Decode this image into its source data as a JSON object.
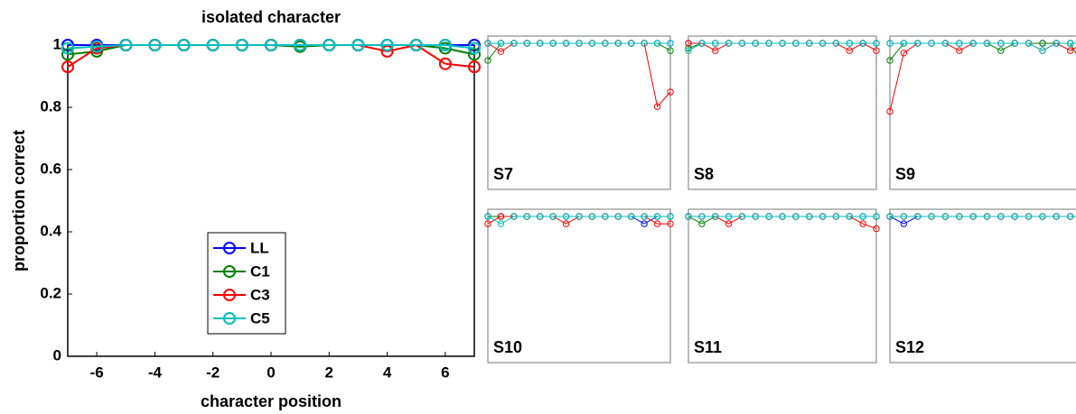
{
  "chart_data": [
    {
      "type": "line",
      "title": "isolated character",
      "x_label": "character position",
      "y_label": "proportion correct",
      "x": [
        -7,
        -6,
        -5,
        -4,
        -3,
        -2,
        -1,
        0,
        1,
        2,
        3,
        4,
        5,
        6,
        7
      ],
      "xlim": [
        -7,
        7
      ],
      "xticks": [
        -6,
        -4,
        -2,
        0,
        2,
        4,
        6
      ],
      "ylim": [
        0,
        1
      ],
      "yticks": [
        0,
        0.2,
        0.4,
        0.6,
        0.8,
        1
      ],
      "legend": "lower left",
      "series": [
        {
          "name": "LL",
          "color": "#0000ff",
          "values": [
            1,
            1,
            1,
            1,
            1,
            1,
            1,
            1,
            1,
            1,
            1,
            1,
            1,
            1,
            1
          ]
        },
        {
          "name": "C1",
          "color": "#008000",
          "values": [
            0.97,
            0.98,
            1,
            1,
            1,
            1,
            1,
            1,
            0.995,
            1,
            1,
            1,
            1,
            0.99,
            0.97
          ]
        },
        {
          "name": "C3",
          "color": "#ff0000",
          "values": [
            0.93,
            0.99,
            1,
            1,
            1,
            1,
            1,
            1,
            1,
            1,
            1,
            0.98,
            1,
            0.94,
            0.93
          ]
        },
        {
          "name": "C5",
          "color": "#00bfbf",
          "values": [
            0.99,
            0.995,
            1,
            1,
            1,
            1,
            1,
            1,
            1,
            1,
            1,
            1,
            1,
            1,
            0.99
          ]
        }
      ]
    },
    {
      "type": "line",
      "title": "S7",
      "x": [
        -7,
        -6,
        -5,
        -4,
        -3,
        -2,
        -1,
        0,
        1,
        2,
        3,
        4,
        5,
        6,
        7
      ],
      "xlim": [
        -7,
        7
      ],
      "ylim": [
        0.7,
        1
      ],
      "series": [
        {
          "color": "#0000ff",
          "values": [
            1,
            1,
            1,
            1,
            1,
            1,
            1,
            1,
            1,
            1,
            1,
            1,
            1,
            1,
            1
          ]
        },
        {
          "color": "#008000",
          "values": [
            0.965,
            1,
            1,
            1,
            1,
            1,
            1,
            1,
            1,
            1,
            1,
            1,
            1,
            1,
            0.985
          ]
        },
        {
          "color": "#ff0000",
          "values": [
            1,
            0.983,
            1,
            1,
            1,
            1,
            1,
            1,
            1,
            1,
            1,
            1,
            1,
            0.87,
            0.9
          ]
        },
        {
          "color": "#00bfbf",
          "values": [
            1,
            1,
            1,
            1,
            1,
            1,
            1,
            1,
            1,
            1,
            1,
            1,
            1,
            1,
            1
          ]
        }
      ]
    },
    {
      "type": "line",
      "title": "S8",
      "x": [
        -7,
        -6,
        -5,
        -4,
        -3,
        -2,
        -1,
        0,
        1,
        2,
        3,
        4,
        5,
        6,
        7
      ],
      "xlim": [
        -7,
        7
      ],
      "ylim": [
        0.7,
        1
      ],
      "series": [
        {
          "color": "#0000ff",
          "values": [
            1,
            1,
            1,
            1,
            1,
            1,
            1,
            1,
            1,
            1,
            1,
            1,
            1,
            1,
            1
          ]
        },
        {
          "color": "#008000",
          "values": [
            0.99,
            1,
            1,
            1,
            1,
            1,
            1,
            1,
            1,
            1,
            1,
            1,
            1,
            1,
            1
          ]
        },
        {
          "color": "#ff0000",
          "values": [
            1,
            1,
            0.985,
            1,
            1,
            1,
            1,
            1,
            1,
            1,
            1,
            1,
            0.985,
            1,
            0.985
          ]
        },
        {
          "color": "#00bfbf",
          "values": [
            0.985,
            1,
            1,
            1,
            1,
            1,
            1,
            1,
            1,
            1,
            1,
            1,
            1,
            1,
            1
          ]
        }
      ]
    },
    {
      "type": "line",
      "title": "S9",
      "x": [
        -7,
        -6,
        -5,
        -4,
        -3,
        -2,
        -1,
        0,
        1,
        2,
        3,
        4,
        5,
        6,
        7
      ],
      "xlim": [
        -7,
        7
      ],
      "ylim": [
        0.7,
        1
      ],
      "series": [
        {
          "color": "#0000ff",
          "values": [
            1,
            1,
            1,
            1,
            1,
            1,
            1,
            1,
            1,
            1,
            1,
            1,
            1,
            1,
            1
          ]
        },
        {
          "color": "#008000",
          "values": [
            0.965,
            1,
            1,
            1,
            1,
            1,
            1,
            1,
            0.985,
            1,
            1,
            1,
            1,
            1,
            0.95
          ]
        },
        {
          "color": "#ff0000",
          "values": [
            0.86,
            0.98,
            1,
            1,
            1,
            0.985,
            1,
            1,
            1,
            1,
            1,
            0.985,
            1,
            0.985,
            1
          ]
        },
        {
          "color": "#00bfbf",
          "values": [
            1,
            1,
            1,
            1,
            1,
            1,
            1,
            1,
            1,
            1,
            1,
            0.985,
            1,
            1,
            1
          ]
        }
      ]
    },
    {
      "type": "line",
      "title": "S10",
      "x": [
        -7,
        -6,
        -5,
        -4,
        -3,
        -2,
        -1,
        0,
        1,
        2,
        3,
        4,
        5,
        6,
        7
      ],
      "xlim": [
        -7,
        7
      ],
      "ylim": [
        0.7,
        1
      ],
      "series": [
        {
          "color": "#0000ff",
          "values": [
            1,
            1,
            1,
            1,
            1,
            1,
            1,
            1,
            1,
            1,
            1,
            1,
            0.985,
            1,
            1
          ]
        },
        {
          "color": "#008000",
          "values": [
            1,
            1,
            1,
            1,
            1,
            1,
            1,
            1,
            1,
            1,
            1,
            1,
            1,
            1,
            1
          ]
        },
        {
          "color": "#ff0000",
          "values": [
            0.985,
            1,
            1,
            1,
            1,
            1,
            0.985,
            1,
            1,
            1,
            1,
            1,
            1,
            0.985,
            0.985
          ]
        },
        {
          "color": "#00bfbf",
          "values": [
            1,
            0.985,
            1,
            1,
            1,
            1,
            1,
            1,
            1,
            1,
            1,
            1,
            1,
            1,
            1
          ]
        }
      ]
    },
    {
      "type": "line",
      "title": "S11",
      "x": [
        -7,
        -6,
        -5,
        -4,
        -3,
        -2,
        -1,
        0,
        1,
        2,
        3,
        4,
        5,
        6,
        7
      ],
      "xlim": [
        -7,
        7
      ],
      "ylim": [
        0.7,
        1
      ],
      "series": [
        {
          "color": "#0000ff",
          "values": [
            1,
            1,
            1,
            1,
            1,
            1,
            1,
            1,
            1,
            1,
            1,
            1,
            1,
            1,
            1
          ]
        },
        {
          "color": "#008000",
          "values": [
            1,
            0.985,
            1,
            1,
            1,
            1,
            1,
            1,
            1,
            1,
            1,
            1,
            1,
            1,
            1
          ]
        },
        {
          "color": "#ff0000",
          "values": [
            1,
            1,
            1,
            0.985,
            1,
            1,
            1,
            1,
            1,
            1,
            1,
            1,
            1,
            0.985,
            0.975
          ]
        },
        {
          "color": "#00bfbf",
          "values": [
            1,
            1,
            1,
            1,
            1,
            1,
            1,
            1,
            1,
            1,
            1,
            1,
            1,
            1,
            1
          ]
        }
      ]
    },
    {
      "type": "line",
      "title": "S12",
      "x": [
        -7,
        -6,
        -5,
        -4,
        -3,
        -2,
        -1,
        0,
        1,
        2,
        3,
        4,
        5,
        6,
        7
      ],
      "xlim": [
        -7,
        7
      ],
      "ylim": [
        0.7,
        1
      ],
      "series": [
        {
          "color": "#0000ff",
          "values": [
            1,
            0.985,
            1,
            1,
            1,
            1,
            1,
            1,
            1,
            1,
            1,
            1,
            1,
            1,
            1
          ]
        },
        {
          "color": "#008000",
          "values": [
            1,
            1,
            1,
            1,
            1,
            1,
            1,
            1,
            1,
            1,
            1,
            1,
            1,
            1,
            1
          ]
        },
        {
          "color": "#ff0000",
          "values": [
            1,
            1,
            1,
            1,
            1,
            1,
            1,
            1,
            1,
            1,
            1,
            1,
            1,
            1,
            1
          ]
        },
        {
          "color": "#00bfbf",
          "values": [
            1,
            1,
            1,
            1,
            1,
            1,
            1,
            1,
            1,
            1,
            1,
            1,
            1,
            1,
            1
          ]
        }
      ]
    }
  ]
}
